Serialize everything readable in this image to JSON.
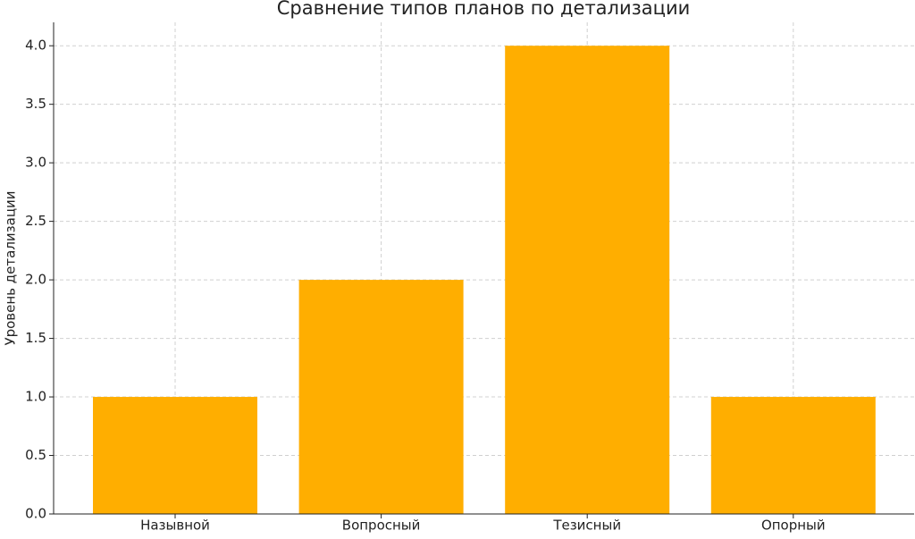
{
  "chart_data": {
    "type": "bar",
    "title": "Сравнение типов планов по детализации",
    "y_label": "Уровень детализации",
    "categories": [
      "Назывной",
      "Вопросный",
      "Тезисный",
      "Опорный"
    ],
    "values": [
      1,
      2,
      4,
      1
    ],
    "color": "#ffae00",
    "ylim": [
      0,
      4.2
    ],
    "yticks": [
      {
        "value": 0,
        "label": "0.0"
      },
      {
        "value": 0.5,
        "label": "0.5"
      },
      {
        "value": 1,
        "label": "1.0"
      },
      {
        "value": 1.5,
        "label": "1.5"
      },
      {
        "value": 2,
        "label": "2.0"
      },
      {
        "value": 2.5,
        "label": "2.5"
      },
      {
        "value": 3,
        "label": "3.0"
      },
      {
        "value": 3.5,
        "label": "3.5"
      },
      {
        "value": 4,
        "label": "4.0"
      }
    ],
    "grid": true
  }
}
